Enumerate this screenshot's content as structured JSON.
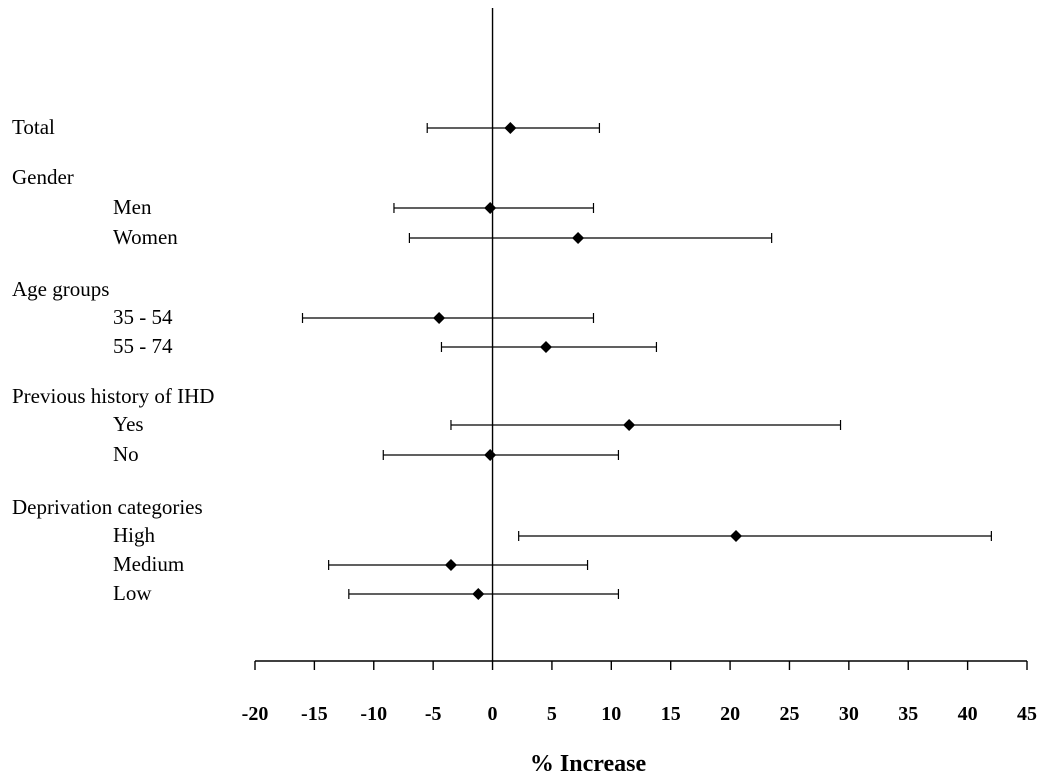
{
  "chart_data": {
    "type": "forest",
    "xlabel": "% Increase",
    "xlim": [
      -20,
      45
    ],
    "xticks": [
      -20,
      -15,
      -10,
      -5,
      0,
      5,
      10,
      15,
      20,
      25,
      30,
      35,
      40,
      45
    ],
    "reference_line": 0,
    "rows": [
      {
        "label": "Total",
        "indent": false,
        "estimate": 1.5,
        "lower": -5.5,
        "upper": 9.0
      },
      {
        "label": "Gender",
        "indent": false,
        "header": true
      },
      {
        "label": "Men",
        "indent": true,
        "estimate": -0.2,
        "lower": -8.3,
        "upper": 8.5
      },
      {
        "label": "Women",
        "indent": true,
        "estimate": 7.2,
        "lower": -7.0,
        "upper": 23.5
      },
      {
        "label": "Age groups",
        "indent": false,
        "header": true
      },
      {
        "label": "35 - 54",
        "indent": true,
        "estimate": -4.5,
        "lower": -16.0,
        "upper": 8.5
      },
      {
        "label": "55 - 74",
        "indent": true,
        "estimate": 4.5,
        "lower": -4.3,
        "upper": 13.8
      },
      {
        "label": "Previous history of IHD",
        "indent": false,
        "header": true
      },
      {
        "label": "Yes",
        "indent": true,
        "estimate": 11.5,
        "lower": -3.5,
        "upper": 29.3
      },
      {
        "label": "No",
        "indent": true,
        "estimate": -0.2,
        "lower": -9.2,
        "upper": 10.6
      },
      {
        "label": "Deprivation categories",
        "indent": false,
        "header": true
      },
      {
        "label": "High",
        "indent": true,
        "estimate": 20.5,
        "lower": 2.2,
        "upper": 42.0
      },
      {
        "label": "Medium",
        "indent": true,
        "estimate": -3.5,
        "lower": -13.8,
        "upper": 8.0
      },
      {
        "label": "Low",
        "indent": true,
        "estimate": -1.2,
        "lower": -12.1,
        "upper": 10.6
      }
    ]
  }
}
